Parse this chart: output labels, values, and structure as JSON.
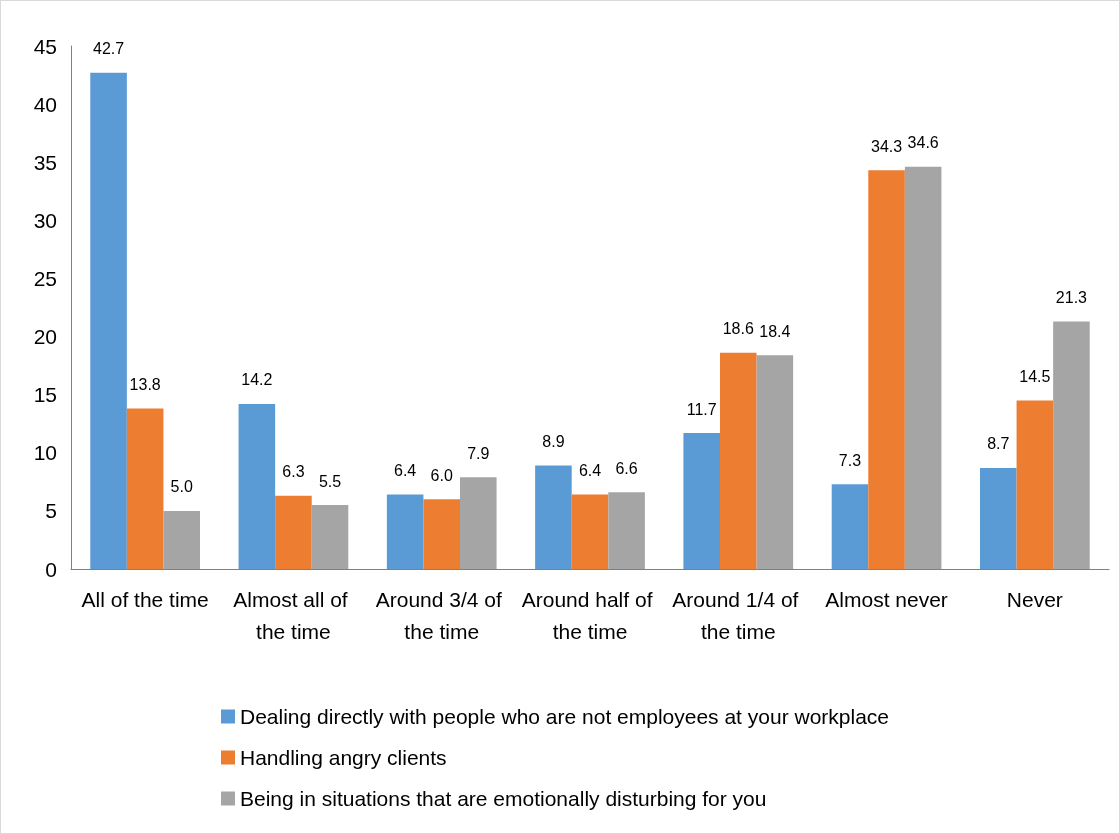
{
  "chart_data": {
    "type": "bar",
    "categories": [
      "All of the time",
      "Almost all of the time",
      "Around 3/4 of the time",
      "Around half of the time",
      "Around 1/4 of the time",
      "Almost never",
      "Never"
    ],
    "series": [
      {
        "name": "Dealing directly with people who are not employees at your workplace",
        "color": "#5b9bd5",
        "values": [
          42.7,
          14.2,
          6.4,
          8.9,
          11.7,
          7.3,
          8.7
        ],
        "value_labels": [
          "42.7",
          "14.2",
          "6.4",
          "8.9",
          "11.7",
          "7.3",
          "8.7"
        ]
      },
      {
        "name": "Handling angry clients",
        "color": "#ed7d31",
        "values": [
          13.8,
          6.3,
          6.0,
          6.4,
          18.6,
          34.3,
          14.5
        ],
        "value_labels": [
          "13.8",
          "6.3",
          "6.0",
          "6.4",
          "18.6",
          "34.3",
          "14.5"
        ]
      },
      {
        "name": "Being in situations that are emotionally disturbing for you",
        "color": "#a5a5a5",
        "values": [
          5.0,
          5.5,
          7.9,
          6.6,
          18.4,
          34.6,
          21.3
        ],
        "value_labels": [
          "5.0",
          "5.5",
          "7.9",
          "6.6",
          "18.4",
          "34.6",
          "21.3"
        ]
      }
    ],
    "ylim": [
      0,
      45
    ],
    "yticks": [
      0,
      5,
      10,
      15,
      20,
      25,
      30,
      35,
      40,
      45
    ],
    "grid": false,
    "legend": "bottom"
  }
}
